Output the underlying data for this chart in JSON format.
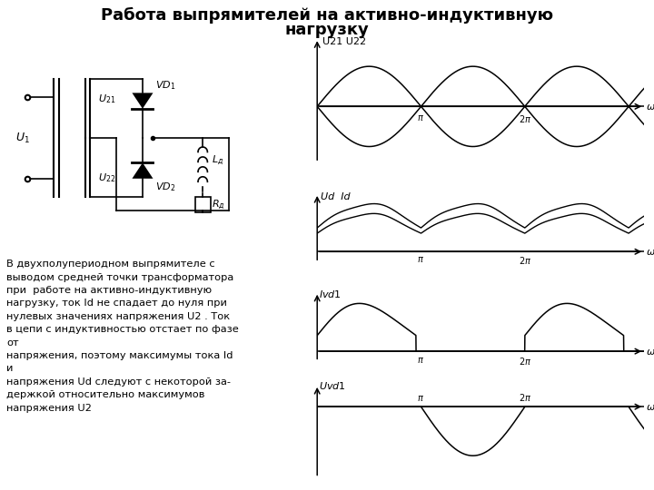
{
  "title_line1": "Работа выпрямителей на активно-индуктивную",
  "title_line2": "нагрузку",
  "title_fontsize": 13,
  "bg_color": "#ffffff",
  "description": "В двухполупериодном выпрямителе с\nвыводом средней точки трансформатора\nпри  работе на активно-индуктивную\nнагрузку, ток Id не спадает до нуля при\nнулевых значениях напряжения U2 . Ток\nв цепи с индуктивностью отстает по фазе\nот\nнапряжения, поэтому максимумы тока Id\nи\nнапряжения Ud следуют с некоторой за-\nдержкой относительно максимумов\nнапряжения U2"
}
